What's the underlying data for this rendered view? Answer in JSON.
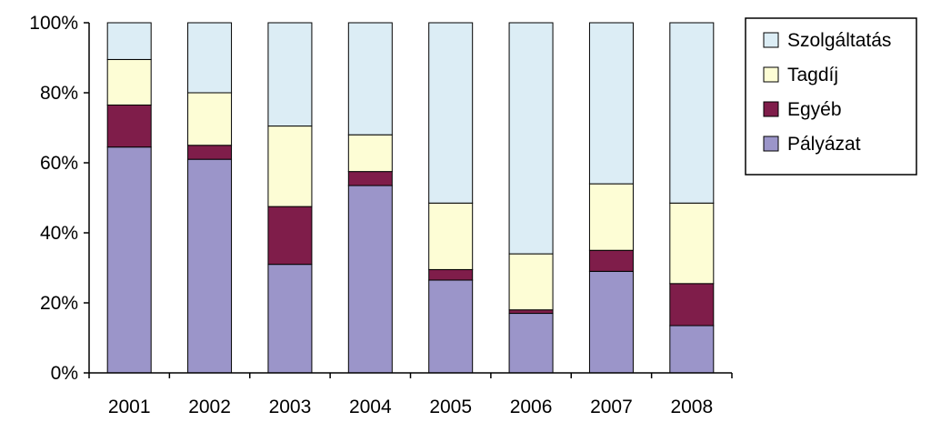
{
  "chart_data": {
    "type": "bar",
    "stacked": true,
    "normalized_percent": true,
    "title": "",
    "xlabel": "",
    "ylabel": "",
    "ylim": [
      0,
      100
    ],
    "yticks": [
      "0%",
      "20%",
      "40%",
      "60%",
      "80%",
      "100%"
    ],
    "grid": false,
    "legend_position": "right",
    "categories": [
      "2001",
      "2002",
      "2003",
      "2004",
      "2005",
      "2006",
      "2007",
      "2008"
    ],
    "series": [
      {
        "name": "Pályázat",
        "color": "#9b95c9",
        "values": [
          64.5,
          61,
          31,
          53.5,
          26.5,
          17,
          29,
          13.5
        ]
      },
      {
        "name": "Egyéb",
        "color": "#7f1d4a",
        "values": [
          12,
          4,
          16.5,
          4,
          3,
          1,
          6,
          12
        ]
      },
      {
        "name": "Tagdíj",
        "color": "#fdfdd5",
        "values": [
          13,
          15,
          23,
          10.5,
          19,
          16,
          19,
          23
        ]
      },
      {
        "name": "Szolgáltatás",
        "color": "#dcedf5",
        "values": [
          10.5,
          20,
          29.5,
          32,
          51.5,
          66,
          46,
          51.5
        ]
      }
    ],
    "legend_order": [
      "Szolgáltatás",
      "Tagdíj",
      "Egyéb",
      "Pályázat"
    ]
  }
}
